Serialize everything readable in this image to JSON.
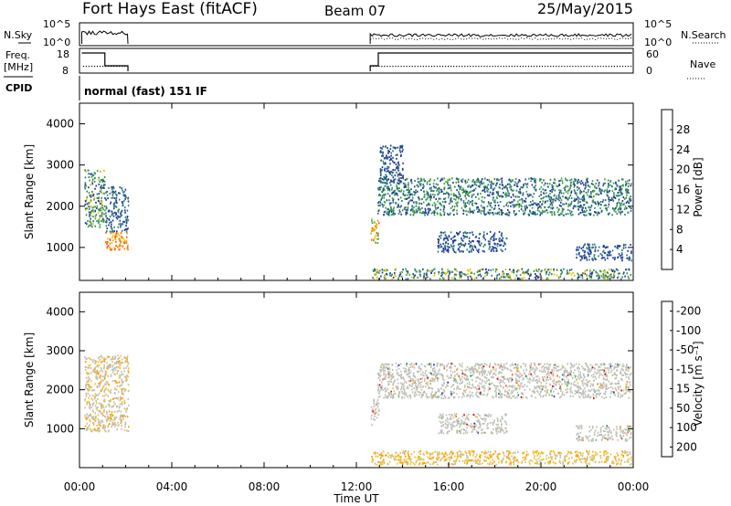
{
  "header": {
    "station": "Fort Hays East (fitACF)",
    "beam": "Beam 07",
    "date": "25/May/2015"
  },
  "panels": {
    "nsky_label": "N.Sky",
    "nsky_ticks": [
      "10^5",
      "10^0"
    ],
    "nsearch_label": "N.Search",
    "nsearch_ticks": [
      "10^5",
      "10^0"
    ],
    "freq_label_1": "Freq.",
    "freq_label_2": "[MHz]",
    "freq_ticks": [
      "18",
      "8"
    ],
    "nave_label": "Nave",
    "nave_ticks": [
      "60",
      "0"
    ],
    "cpid_label": "CPID",
    "cpid_text": "normal (fast) 151 IF"
  },
  "colors": {
    "power": [
      "#0000ff",
      "#1f3a9c",
      "#2f7f6f",
      "#3fa040",
      "#e6c000",
      "#ff8c00",
      "#ff5000",
      "#e00000"
    ],
    "velocity": [
      "#1a2eb0",
      "#1a7d5a",
      "#55cc33",
      "#c8c8c8",
      "#f0c030",
      "#ff9a00",
      "#ff5a00",
      "#e00000"
    ],
    "ground_scatter": "#c0c0b8"
  },
  "chart_data": [
    {
      "type": "heatmap",
      "name": "power",
      "ylabel": "Slant Range [km]",
      "xlabel": "",
      "yticks": [
        1000,
        2000,
        3000,
        4000
      ],
      "ylim": [
        200,
        4500
      ],
      "xlim": [
        0,
        24
      ],
      "colorbar_label": "Power [dB]",
      "colorbar_ticks": [
        "4",
        "8",
        "12",
        "16",
        "20",
        "24",
        "28"
      ],
      "colorbar_range": [
        0,
        32
      ],
      "regions": [
        {
          "t0": 0.2,
          "t1": 1.1,
          "r0": 1500,
          "r1": 2900,
          "vmin": 6,
          "vmax": 18
        },
        {
          "t0": 1.1,
          "t1": 2.1,
          "r0": 950,
          "r1": 1400,
          "vmin": 18,
          "vmax": 28
        },
        {
          "t0": 1.1,
          "t1": 2.1,
          "r0": 1400,
          "r1": 2500,
          "vmin": 4,
          "vmax": 12
        },
        {
          "t0": 12.6,
          "t1": 12.95,
          "r0": 1100,
          "r1": 1800,
          "vmin": 14,
          "vmax": 26
        },
        {
          "t0": 12.9,
          "t1": 23.9,
          "r0": 1800,
          "r1": 2700,
          "vmin": 4,
          "vmax": 16
        },
        {
          "t0": 13.0,
          "t1": 14.0,
          "r0": 2600,
          "r1": 3500,
          "vmin": 4,
          "vmax": 10
        },
        {
          "t0": 15.5,
          "t1": 18.5,
          "r0": 900,
          "r1": 1400,
          "vmin": 4,
          "vmax": 10
        },
        {
          "t0": 21.5,
          "t1": 23.9,
          "r0": 700,
          "r1": 1100,
          "vmin": 4,
          "vmax": 10
        },
        {
          "t0": 12.6,
          "t1": 23.9,
          "r0": 250,
          "r1": 500,
          "vmin": 4,
          "vmax": 20
        }
      ]
    },
    {
      "type": "heatmap",
      "name": "velocity",
      "ylabel": "Slant Range [km]",
      "xlabel": "Time UT",
      "yticks": [
        1000,
        2000,
        3000,
        4000
      ],
      "ylim": [
        0,
        4500
      ],
      "xlim": [
        0,
        24
      ],
      "xtick_labels": [
        "00:00",
        "04:00",
        "08:00",
        "12:00",
        "16:00",
        "20:00",
        "00:00"
      ],
      "colorbar_label": "Velocity [m s⁻¹]",
      "colorbar_ticks": [
        "-200",
        "-100",
        "-50",
        "-15",
        "15",
        "50",
        "100",
        "200"
      ],
      "regions": [
        {
          "t0": 0.2,
          "t1": 2.1,
          "r0": 950,
          "r1": 2900,
          "kind": "mixed"
        },
        {
          "t0": 12.6,
          "t1": 12.95,
          "r0": 1100,
          "r1": 1800,
          "kind": "gs"
        },
        {
          "t0": 12.9,
          "t1": 23.9,
          "r0": 1800,
          "r1": 2700,
          "kind": "gs"
        },
        {
          "t0": 15.5,
          "t1": 18.5,
          "r0": 900,
          "r1": 1400,
          "kind": "gs"
        },
        {
          "t0": 21.5,
          "t1": 23.9,
          "r0": 700,
          "r1": 1100,
          "kind": "gs"
        },
        {
          "t0": 12.6,
          "t1": 23.9,
          "r0": 100,
          "r1": 450,
          "kind": "neg"
        }
      ]
    }
  ]
}
